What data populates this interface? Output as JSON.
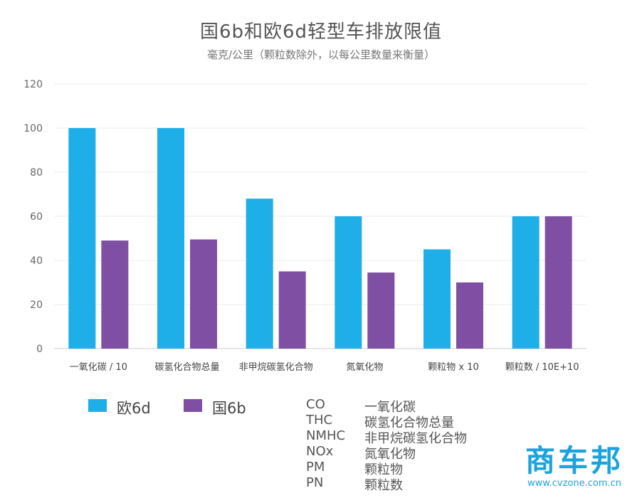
{
  "chart_data": {
    "type": "bar",
    "title": "国6b和欧6d轻型车排放限值",
    "subtitle": "毫克/公里（颗粒数除外，以每公里数量来衡量）",
    "categories": [
      "一氧化碳 / 10",
      "碳氢化合物总量",
      "非甲烷碳氢化合物",
      "氮氧化物",
      "颗粒物 x 10",
      "颗粒数 / 10E+10"
    ],
    "series": [
      {
        "name": "欧6d",
        "color": "#1eaee8",
        "values": [
          100,
          100,
          68,
          60,
          45,
          60
        ]
      },
      {
        "name": "国6b",
        "color": "#7f4fa3",
        "values": [
          49,
          49.5,
          35,
          34.5,
          30,
          60
        ]
      }
    ],
    "yticks": [
      "0",
      "20",
      "40",
      "60",
      "80",
      "100",
      "120"
    ],
    "ylim": [
      0,
      120
    ],
    "grid": true,
    "legend": "bottom-left"
  },
  "legend": {
    "items": [
      {
        "label": "欧6d",
        "color": "#1eaee8"
      },
      {
        "label": "国6b",
        "color": "#7f4fa3"
      }
    ]
  },
  "abbreviations": [
    {
      "code": "CO",
      "name": "一氧化碳"
    },
    {
      "code": "THC",
      "name": "碳氢化合物总量"
    },
    {
      "code": "NMHC",
      "name": "非甲烷碳氢化合物"
    },
    {
      "code": "NOx",
      "name": "氮氧化物"
    },
    {
      "code": "PM",
      "name": "颗粒物"
    },
    {
      "code": "PN",
      "name": "颗粒数"
    }
  ],
  "watermark": {
    "logo": "商车邦",
    "url": "www.cvzone.com.cn"
  }
}
